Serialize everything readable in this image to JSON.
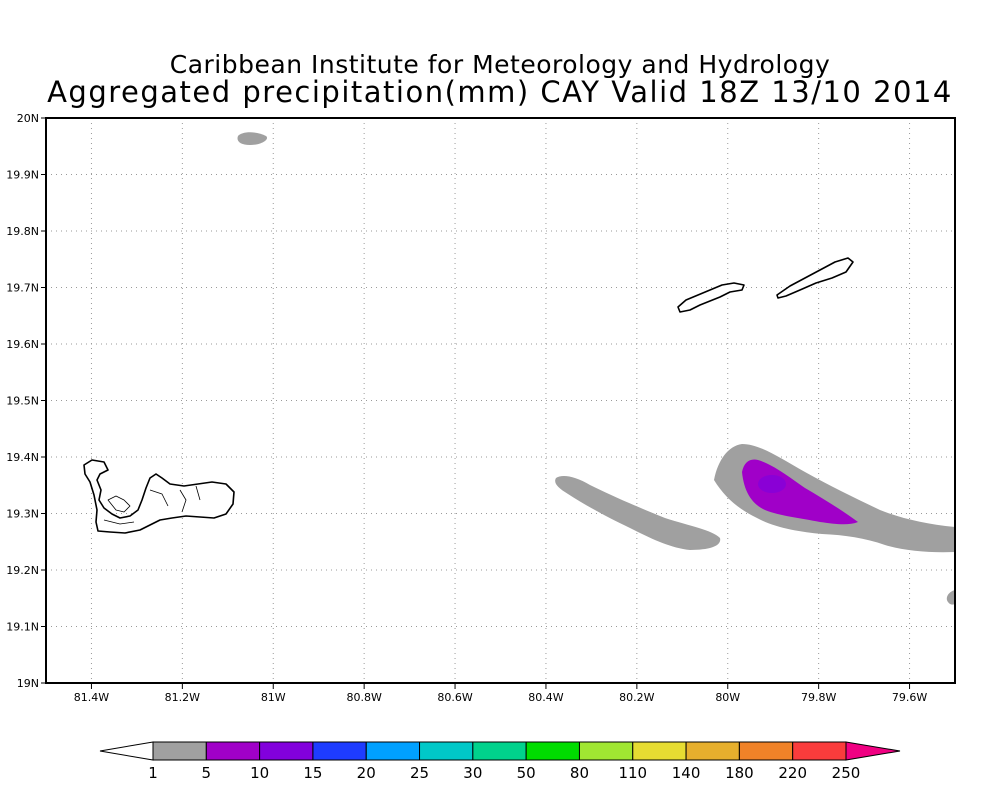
{
  "title": {
    "line1": "Caribbean Institute for Meteorology and Hydrology",
    "line2": "Aggregated precipitation(mm) CAY Valid 18Z 13/10 2014"
  },
  "map": {
    "lon_range": [
      -81.5,
      -79.5
    ],
    "lat_range": [
      19.0,
      20.0
    ],
    "lon_ticks": [
      {
        "value": -81.4,
        "label": "81.4W"
      },
      {
        "value": -81.2,
        "label": "81.2W"
      },
      {
        "value": -81.0,
        "label": "81W"
      },
      {
        "value": -80.8,
        "label": "80.8W"
      },
      {
        "value": -80.6,
        "label": "80.6W"
      },
      {
        "value": -80.4,
        "label": "80.4W"
      },
      {
        "value": -80.2,
        "label": "80.2W"
      },
      {
        "value": -80.0,
        "label": "80W"
      },
      {
        "value": -79.8,
        "label": "79.8W"
      },
      {
        "value": -79.6,
        "label": "79.6W"
      }
    ],
    "lat_ticks": [
      {
        "value": 19.0,
        "label": "19N"
      },
      {
        "value": 19.1,
        "label": "19.1N"
      },
      {
        "value": 19.2,
        "label": "19.2N"
      },
      {
        "value": 19.3,
        "label": "19.3N"
      },
      {
        "value": 19.4,
        "label": "19.4N"
      },
      {
        "value": 19.5,
        "label": "19.5N"
      },
      {
        "value": 19.6,
        "label": "19.6N"
      },
      {
        "value": 19.7,
        "label": "19.7N"
      },
      {
        "value": 19.8,
        "label": "19.8N"
      },
      {
        "value": 19.9,
        "label": "19.9N"
      },
      {
        "value": 20.0,
        "label": "20N"
      }
    ],
    "grid": "dotted",
    "islands": [
      "Grand Cayman",
      "Little Cayman",
      "Cayman Brac"
    ]
  },
  "precipitation_areas": [
    {
      "name": "north-blob",
      "level": "1-5 mm"
    },
    {
      "name": "central-band",
      "level": "1-5 mm"
    },
    {
      "name": "eastern-band",
      "level": "1-5 mm"
    },
    {
      "name": "eastern-core",
      "level": "5-10 mm"
    },
    {
      "name": "edge-blob",
      "level": "1-5 mm"
    }
  ],
  "colorbar": {
    "labels": [
      "1",
      "5",
      "10",
      "15",
      "20",
      "25",
      "30",
      "50",
      "80",
      "110",
      "140",
      "180",
      "220",
      "250"
    ],
    "colors": [
      "#a0a0a0",
      "#a000c8",
      "#8200dc",
      "#1e3cff",
      "#00a0ff",
      "#00c8c8",
      "#00d28c",
      "#00dc00",
      "#a0e632",
      "#e6dc32",
      "#e6af2d",
      "#f08228",
      "#fa3c3c",
      "#f00082"
    ],
    "below_color": "#ffffff",
    "above_color": "#f00082"
  }
}
